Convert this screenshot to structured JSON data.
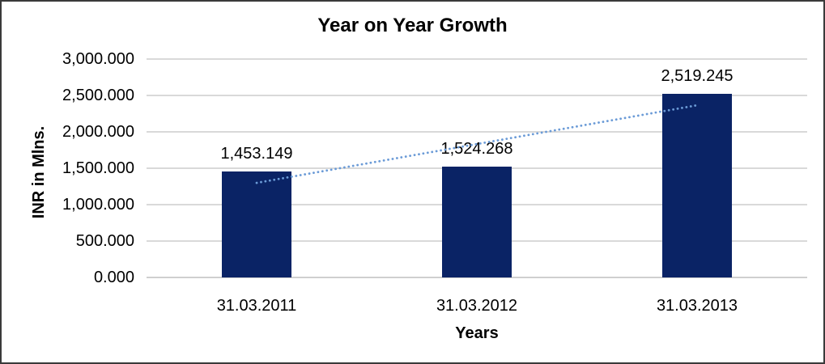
{
  "chart": {
    "title": "Year on Year Growth",
    "xlabel": "Years",
    "ylabel": "INR in Mlns."
  },
  "chart_data": {
    "type": "bar",
    "title": "Year on Year Growth",
    "xlabel": "Years",
    "ylabel": "INR in Mlns.",
    "categories": [
      "31.03.2011",
      "31.03.2012",
      "31.03.2013"
    ],
    "values": [
      1453.149,
      1524.268,
      2519.245
    ],
    "data_labels": [
      "1,453.149",
      "1,524.268",
      "2,519.245"
    ],
    "y_ticks": [
      {
        "value": 0,
        "label": "0.000"
      },
      {
        "value": 500,
        "label": "500.000"
      },
      {
        "value": 1000,
        "label": "1,000.000"
      },
      {
        "value": 1500,
        "label": "1,500.000"
      },
      {
        "value": 2000,
        "label": "2,000.000"
      },
      {
        "value": 2500,
        "label": "2,500.000"
      },
      {
        "value": 3000,
        "label": "3,000.000"
      }
    ],
    "ylim": [
      0,
      3000
    ],
    "grid": true,
    "legend": "none",
    "trendline": {
      "type": "linear",
      "style": "dotted",
      "endpoint_values": [
        1299.17,
        2365.27
      ]
    },
    "colors": {
      "bar": "#0a2365",
      "trendline": "#6b9bd7",
      "gridline": "#d9d9d9",
      "text": "#000000",
      "frame_border": "#3a3a3a",
      "background": "#ffffff"
    }
  }
}
